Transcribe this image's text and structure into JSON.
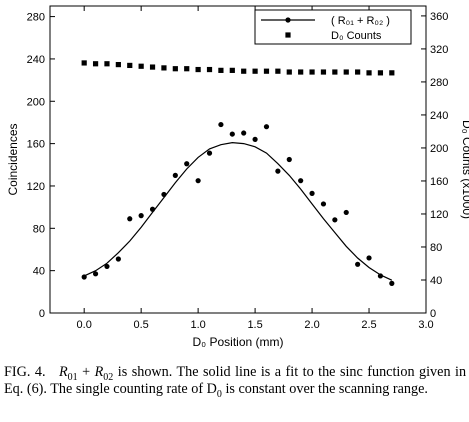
{
  "chart_data": {
    "type": "scatter",
    "xlabel": "D₀ Position (mm)",
    "ylabel_left": "Coincidences",
    "ylabel_right": "D₀ Counts (x1000)",
    "xlim": [
      -0.3,
      3.0
    ],
    "ylim_left": [
      0,
      290
    ],
    "ylim_right": [
      0,
      372
    ],
    "x_ticks": [
      "0.0",
      "0.5",
      "1.0",
      "1.5",
      "2.0",
      "2.5",
      "3.0"
    ],
    "x_tick_values": [
      0.0,
      0.5,
      1.0,
      1.5,
      2.0,
      2.5,
      3.0
    ],
    "y_left_ticks": [
      "0",
      "40",
      "80",
      "120",
      "160",
      "200",
      "240",
      "280"
    ],
    "y_left_tick_values": [
      0,
      40,
      80,
      120,
      160,
      200,
      240,
      280
    ],
    "y_right_ticks": [
      "0",
      "40",
      "80",
      "120",
      "160",
      "200",
      "240",
      "280",
      "320",
      "360"
    ],
    "y_right_tick_values": [
      0,
      40,
      80,
      120,
      160,
      200,
      240,
      280,
      320,
      360
    ],
    "legend": {
      "placement": "top-right",
      "entries": [
        "( R₀₁ + R₀₂ )",
        "D₀  Counts"
      ]
    },
    "series": [
      {
        "name": "( R₀₁ + R₀₂ )",
        "axis": "left",
        "marker": "circle",
        "x": [
          0.0,
          0.1,
          0.2,
          0.3,
          0.4,
          0.5,
          0.6,
          0.7,
          0.8,
          0.9,
          1.0,
          1.1,
          1.2,
          1.3,
          1.4,
          1.5,
          1.6,
          1.7,
          1.8,
          1.9,
          2.0,
          2.1,
          2.2,
          2.3,
          2.4,
          2.5,
          2.6,
          2.7
        ],
        "y": [
          34,
          37,
          44,
          51,
          89,
          92,
          98,
          112,
          130,
          141,
          125,
          151,
          178,
          169,
          170,
          164,
          176,
          134,
          145,
          125,
          113,
          103,
          88,
          95,
          46,
          52,
          35,
          28
        ]
      },
      {
        "name": "D₀  Counts",
        "axis": "right",
        "marker": "square",
        "x": [
          0.0,
          0.1,
          0.2,
          0.3,
          0.4,
          0.5,
          0.6,
          0.7,
          0.8,
          0.9,
          1.0,
          1.1,
          1.2,
          1.3,
          1.4,
          1.5,
          1.6,
          1.7,
          1.8,
          1.9,
          2.0,
          2.1,
          2.2,
          2.3,
          2.4,
          2.5,
          2.6,
          2.7
        ],
        "y": [
          303,
          302,
          302,
          301,
          300,
          299,
          298,
          297,
          296,
          296,
          295,
          295,
          294,
          294,
          293,
          293,
          293,
          293,
          292,
          292,
          292,
          292,
          292,
          292,
          292,
          291,
          291,
          291
        ]
      },
      {
        "name": "sinc fit",
        "axis": "left",
        "marker": "line",
        "x": [
          0.0,
          0.1,
          0.2,
          0.3,
          0.4,
          0.5,
          0.6,
          0.7,
          0.8,
          0.9,
          1.0,
          1.1,
          1.2,
          1.3,
          1.4,
          1.5,
          1.6,
          1.7,
          1.8,
          1.9,
          2.0,
          2.1,
          2.2,
          2.3,
          2.4,
          2.5,
          2.6,
          2.7
        ],
        "y": [
          35,
          40,
          47,
          57,
          68,
          81,
          95,
          109,
          123,
          136,
          147,
          155,
          159,
          161,
          160,
          157,
          151,
          141,
          130,
          117,
          103,
          89,
          76,
          63,
          52,
          43,
          36,
          31
        ]
      }
    ]
  },
  "caption": {
    "fig_label": "FIG. 4.",
    "math_r": "R",
    "sub_01": "01",
    "plus": "+",
    "sub_02": "02",
    "text_1": "is shown. The solid line is a fit to the sinc function given in Eq. (6). The single counting rate of D",
    "sub_0": "0",
    "text_2": "is constant over the scanning range."
  }
}
